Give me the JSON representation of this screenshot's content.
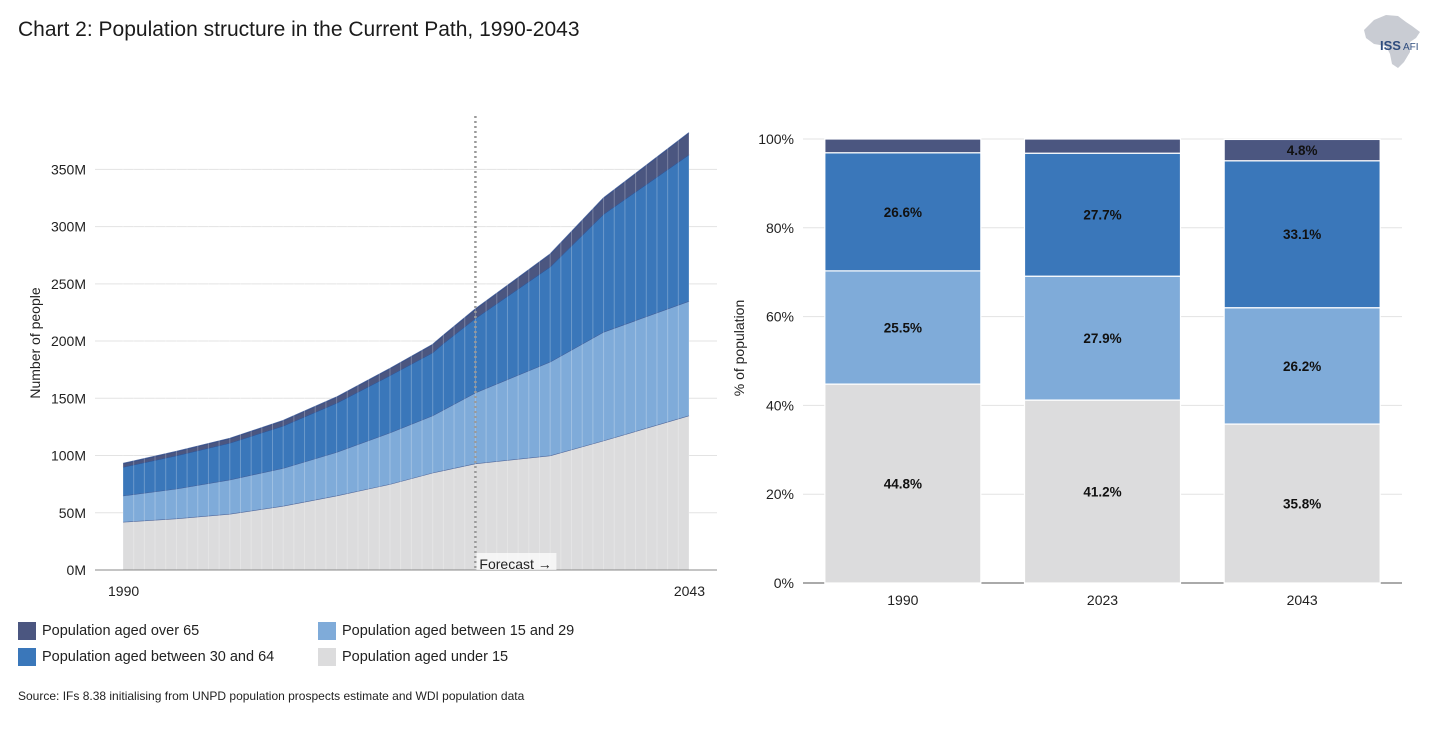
{
  "title": "Chart 2: Population structure in the Current Path, 1990-2043",
  "logo": {
    "main": "ISS",
    "sub": "AFI"
  },
  "colors": {
    "over65": "#4b5680",
    "age30to64": "#3a77ba",
    "age15to29": "#7fabd9",
    "under15": "#dcdcdd"
  },
  "chart_data": [
    {
      "type": "area",
      "stacked": true,
      "title": "",
      "ylabel": "Number of people",
      "xlabel": "",
      "x_range": [
        1990,
        2043
      ],
      "ylim": [
        0,
        380
      ],
      "y_ticks": [
        0,
        50,
        100,
        150,
        200,
        250,
        300,
        350
      ],
      "y_tick_labels": [
        "0M",
        "50M",
        "100M",
        "150M",
        "200M",
        "250M",
        "300M",
        "350M"
      ],
      "x_tick_labels": [
        "1990",
        "2043"
      ],
      "forecast_year": 2023,
      "forecast_label": "Forecast →",
      "x": [
        1990,
        1995,
        2000,
        2005,
        2010,
        2015,
        2019,
        2020,
        2023,
        2030,
        2035,
        2043
      ],
      "series": [
        {
          "name": "Population aged under 15",
          "key": "under15",
          "values": [
            42,
            45,
            49,
            56,
            65,
            75,
            85,
            87,
            93,
            100,
            113,
            135
          ]
        },
        {
          "name": "Population aged between 15 and 29",
          "key": "age15to29",
          "values": [
            23,
            26,
            30,
            33,
            38,
            45,
            50,
            53,
            62,
            82,
            95,
            100
          ]
        },
        {
          "name": "Population aged between 30 and 64",
          "key": "age30to64",
          "values": [
            25,
            29,
            32,
            37,
            43,
            50,
            55,
            58,
            65,
            83,
            103,
            128
          ]
        },
        {
          "name": "Population aged over 65",
          "key": "over65",
          "values": [
            3,
            3.5,
            4,
            4.5,
            5,
            6,
            7,
            7,
            8,
            11,
            14,
            19
          ]
        }
      ]
    },
    {
      "type": "bar",
      "stacked": true,
      "percent": true,
      "ylabel": "% of population",
      "xlabel": "",
      "ylim": [
        0,
        100
      ],
      "y_ticks": [
        0,
        20,
        40,
        60,
        80,
        100
      ],
      "y_tick_labels": [
        "0%",
        "20%",
        "40%",
        "60%",
        "80%",
        "100%"
      ],
      "categories": [
        "1990",
        "2023",
        "2043"
      ],
      "series": [
        {
          "name": "Population aged under 15",
          "key": "under15",
          "values": [
            44.8,
            41.2,
            35.8
          ],
          "labels": [
            "44.8%",
            "41.2%",
            "35.8%"
          ]
        },
        {
          "name": "Population aged between 15 and 29",
          "key": "age15to29",
          "values": [
            25.5,
            27.9,
            26.2
          ],
          "labels": [
            "25.5%",
            "27.9%",
            "26.2%"
          ]
        },
        {
          "name": "Population aged between 30 and 64",
          "key": "age30to64",
          "values": [
            26.6,
            27.7,
            33.1
          ],
          "labels": [
            "26.6%",
            "27.7%",
            "33.1%"
          ]
        },
        {
          "name": "Population aged over 65",
          "key": "over65",
          "values": [
            3.1,
            3.2,
            4.8
          ],
          "labels": [
            "",
            "",
            "4.8%"
          ]
        }
      ]
    }
  ],
  "legend": [
    {
      "label": "Population aged over 65",
      "key": "over65"
    },
    {
      "label": "Population aged between 15 and 29",
      "key": "age15to29"
    },
    {
      "label": "Population aged between 30 and 64",
      "key": "age30to64"
    },
    {
      "label": "Population aged under 15",
      "key": "under15"
    }
  ],
  "source": "Source: IFs 8.38 initialising from UNPD population prospects estimate and WDI population data"
}
